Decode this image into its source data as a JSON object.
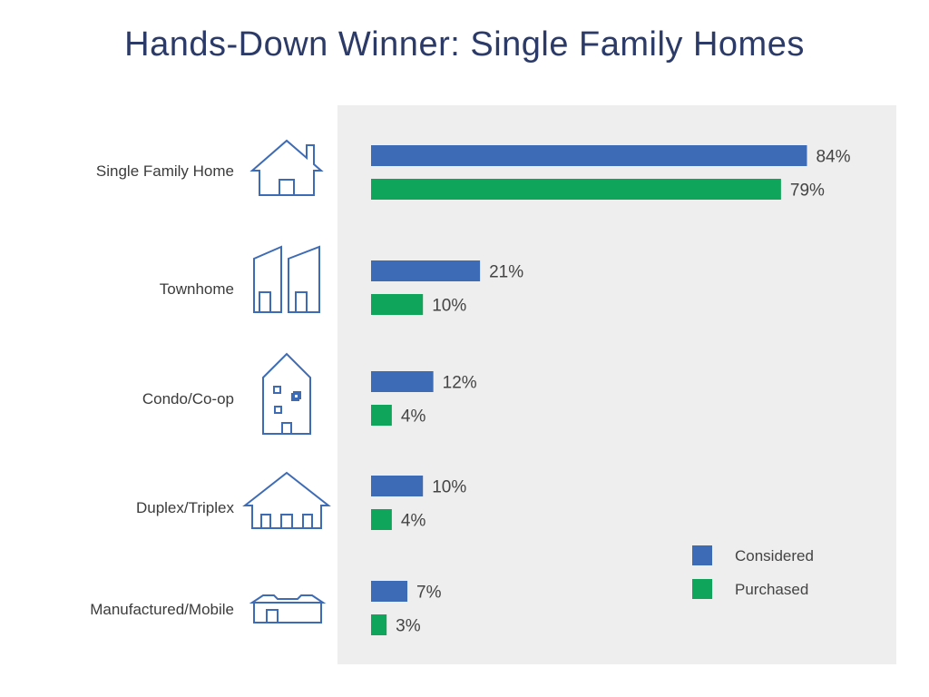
{
  "title": "Hands-Down Winner: Single Family Homes",
  "colors": {
    "considered": "#3d6bb5",
    "purchased": "#0fa65b",
    "panel": "#efeeee",
    "title": "#2b3a67",
    "icon": "#3d6bb5"
  },
  "chart_data": {
    "type": "bar",
    "orientation": "horizontal",
    "title": "Hands-Down Winner: Single Family Homes",
    "xlabel": "",
    "ylabel": "",
    "xlim": [
      0,
      100
    ],
    "grid": false,
    "legend_position": "bottom-right",
    "categories": [
      "Single Family Home",
      "Townhome",
      "Condo/Co-op",
      "Duplex/Triplex",
      "Manufactured/Mobile"
    ],
    "icons": [
      "single-family-house-icon",
      "townhome-icon",
      "condo-building-icon",
      "duplex-house-icon",
      "mobile-home-icon"
    ],
    "series": [
      {
        "name": "Considered",
        "color": "#3d6bb5",
        "values": [
          84,
          21,
          12,
          10,
          7
        ],
        "labels": [
          "84%",
          "21%",
          "12%",
          "10%",
          "7%"
        ]
      },
      {
        "name": "Purchased",
        "color": "#0fa65b",
        "values": [
          79,
          10,
          4,
          4,
          3
        ],
        "labels": [
          "79%",
          "10%",
          "4%",
          "4%",
          "3%"
        ]
      }
    ]
  }
}
